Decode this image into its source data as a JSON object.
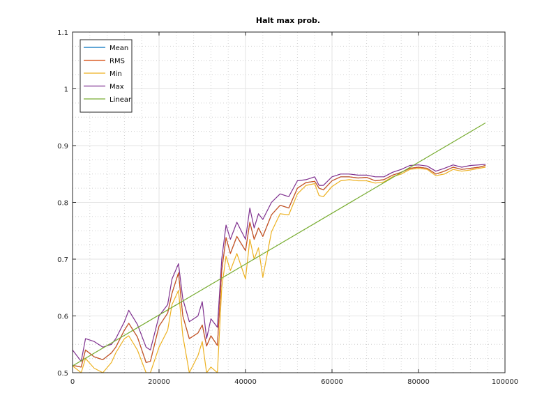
{
  "chart_data": {
    "type": "line",
    "title": "Halt max prob.",
    "xlabel": "",
    "ylabel": "",
    "xlim": [
      0,
      100000
    ],
    "ylim": [
      0.5,
      1.1
    ],
    "x_ticks": [
      0,
      20000,
      40000,
      60000,
      80000,
      100000
    ],
    "x_tick_labels": [
      "0",
      "20000",
      "40000",
      "60000",
      "80000",
      "100000"
    ],
    "y_ticks": [
      0.5,
      0.6,
      0.7,
      0.8,
      0.9,
      1.0,
      1.1
    ],
    "y_tick_labels": [
      "0.5",
      "0.6",
      "0.7",
      "0.8",
      "0.9",
      "1",
      "1.1"
    ],
    "grid": true,
    "minor_grid": true,
    "legend_position": "top-left",
    "series": [
      {
        "name": "Mean",
        "color": "#0072bd",
        "x": [
          0,
          2000,
          3000,
          5000,
          7000,
          9000,
          10000,
          12000,
          13000,
          15000,
          17000,
          18000,
          20000,
          22000,
          23000,
          24500,
          25500,
          27000,
          29000,
          30000,
          31000,
          32000,
          33500,
          34500,
          35500,
          36500,
          38000,
          40000,
          41000,
          42000,
          43000,
          44000,
          46000,
          48000,
          50000,
          52000,
          54000,
          56000,
          57000,
          58000,
          60000,
          62000,
          64000,
          66000,
          68000,
          70000,
          72000,
          74000,
          76000,
          78000,
          80000,
          82000,
          84000,
          86000,
          88000,
          90000,
          92000,
          94000,
          95500
        ],
        "values": [
          0.513,
          0.51,
          0.54,
          0.528,
          0.523,
          0.535,
          0.545,
          0.575,
          0.587,
          0.563,
          0.518,
          0.52,
          0.582,
          0.605,
          0.64,
          0.676,
          0.6,
          0.56,
          0.57,
          0.584,
          0.547,
          0.565,
          0.548,
          0.68,
          0.738,
          0.71,
          0.74,
          0.715,
          0.765,
          0.735,
          0.755,
          0.74,
          0.778,
          0.795,
          0.79,
          0.825,
          0.835,
          0.837,
          0.825,
          0.822,
          0.838,
          0.845,
          0.845,
          0.843,
          0.844,
          0.838,
          0.84,
          0.848,
          0.853,
          0.86,
          0.862,
          0.86,
          0.85,
          0.855,
          0.862,
          0.858,
          0.86,
          0.862,
          0.865
        ]
      },
      {
        "name": "RMS",
        "color": "#d95319",
        "x": [
          0,
          2000,
          3000,
          5000,
          7000,
          9000,
          10000,
          12000,
          13000,
          15000,
          17000,
          18000,
          20000,
          22000,
          23000,
          24500,
          25500,
          27000,
          29000,
          30000,
          31000,
          32000,
          33500,
          34500,
          35500,
          36500,
          38000,
          40000,
          41000,
          42000,
          43000,
          44000,
          46000,
          48000,
          50000,
          52000,
          54000,
          56000,
          57000,
          58000,
          60000,
          62000,
          64000,
          66000,
          68000,
          70000,
          72000,
          74000,
          76000,
          78000,
          80000,
          82000,
          84000,
          86000,
          88000,
          90000,
          92000,
          94000,
          95500
        ],
        "values": [
          0.513,
          0.51,
          0.54,
          0.528,
          0.523,
          0.535,
          0.545,
          0.575,
          0.587,
          0.563,
          0.518,
          0.52,
          0.582,
          0.605,
          0.64,
          0.676,
          0.6,
          0.56,
          0.57,
          0.584,
          0.547,
          0.565,
          0.548,
          0.68,
          0.738,
          0.71,
          0.74,
          0.715,
          0.765,
          0.735,
          0.755,
          0.74,
          0.778,
          0.795,
          0.79,
          0.825,
          0.835,
          0.837,
          0.825,
          0.822,
          0.838,
          0.845,
          0.845,
          0.843,
          0.844,
          0.838,
          0.84,
          0.848,
          0.853,
          0.86,
          0.862,
          0.86,
          0.85,
          0.855,
          0.862,
          0.858,
          0.86,
          0.862,
          0.865
        ]
      },
      {
        "name": "Min",
        "color": "#edb120",
        "x": [
          0,
          2000,
          3000,
          5000,
          7000,
          9000,
          10000,
          12000,
          13000,
          15000,
          17000,
          18000,
          20000,
          22000,
          23000,
          24500,
          25500,
          27000,
          29000,
          30000,
          31000,
          32000,
          33500,
          34500,
          35500,
          36500,
          38000,
          40000,
          41000,
          42000,
          43000,
          44000,
          46000,
          48000,
          50000,
          52000,
          54000,
          56000,
          57000,
          58000,
          60000,
          62000,
          64000,
          66000,
          68000,
          70000,
          72000,
          74000,
          76000,
          78000,
          80000,
          82000,
          84000,
          86000,
          88000,
          90000,
          92000,
          94000,
          95500
        ],
        "values": [
          0.512,
          0.5,
          0.525,
          0.508,
          0.5,
          0.518,
          0.535,
          0.56,
          0.565,
          0.54,
          0.5,
          0.5,
          0.545,
          0.575,
          0.62,
          0.645,
          0.565,
          0.5,
          0.53,
          0.555,
          0.5,
          0.51,
          0.5,
          0.65,
          0.705,
          0.68,
          0.71,
          0.665,
          0.735,
          0.7,
          0.72,
          0.668,
          0.748,
          0.78,
          0.778,
          0.815,
          0.83,
          0.833,
          0.812,
          0.81,
          0.828,
          0.838,
          0.84,
          0.838,
          0.838,
          0.834,
          0.836,
          0.845,
          0.85,
          0.858,
          0.86,
          0.858,
          0.847,
          0.85,
          0.858,
          0.855,
          0.857,
          0.86,
          0.862
        ]
      },
      {
        "name": "Max",
        "color": "#7e2f8e",
        "x": [
          0,
          2000,
          3000,
          5000,
          7000,
          9000,
          10000,
          12000,
          13000,
          15000,
          17000,
          18000,
          20000,
          22000,
          23000,
          24500,
          25500,
          27000,
          29000,
          30000,
          31000,
          32000,
          33500,
          34500,
          35500,
          36500,
          38000,
          40000,
          41000,
          42000,
          43000,
          44000,
          46000,
          48000,
          50000,
          52000,
          54000,
          56000,
          57000,
          58000,
          60000,
          62000,
          64000,
          66000,
          68000,
          70000,
          72000,
          74000,
          76000,
          78000,
          80000,
          82000,
          84000,
          86000,
          88000,
          90000,
          92000,
          94000,
          95500
        ],
        "values": [
          0.54,
          0.52,
          0.56,
          0.555,
          0.545,
          0.55,
          0.56,
          0.59,
          0.61,
          0.585,
          0.545,
          0.54,
          0.6,
          0.62,
          0.665,
          0.692,
          0.63,
          0.59,
          0.6,
          0.625,
          0.56,
          0.595,
          0.58,
          0.7,
          0.76,
          0.735,
          0.765,
          0.735,
          0.79,
          0.755,
          0.78,
          0.77,
          0.8,
          0.815,
          0.81,
          0.838,
          0.84,
          0.845,
          0.83,
          0.83,
          0.845,
          0.85,
          0.85,
          0.848,
          0.848,
          0.845,
          0.845,
          0.853,
          0.858,
          0.865,
          0.866,
          0.864,
          0.855,
          0.86,
          0.866,
          0.862,
          0.865,
          0.866,
          0.867
        ]
      },
      {
        "name": "Linear",
        "color": "#77ac30",
        "x": [
          0,
          95500
        ],
        "values": [
          0.512,
          0.94
        ]
      }
    ]
  }
}
